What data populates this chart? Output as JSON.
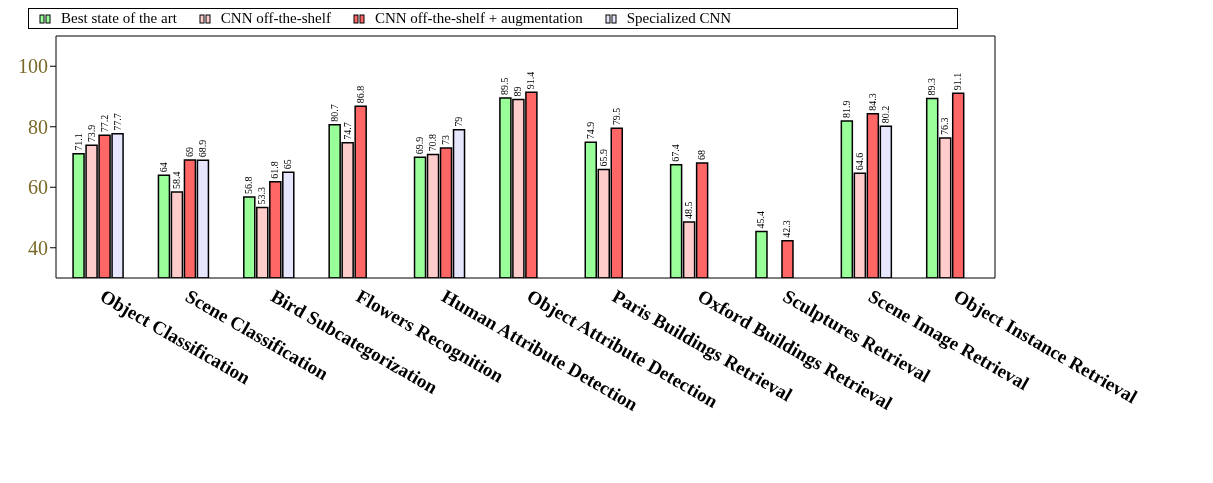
{
  "chart_data": {
    "type": "bar",
    "categories": [
      "Object Classification",
      "Scene Classification",
      "Bird Subcategorization",
      "Flowers Recognition",
      "Human Attribute Detection",
      "Object Attribute Detection",
      "Paris Buildings Retrieval",
      "Oxford Buildings Retrieval",
      "Sculptures Retrieval",
      "Scene Image Retrieval",
      "Object Instance Retrieval"
    ],
    "series": [
      {
        "name": "Best state of the art",
        "color": "#99ff99",
        "values": [
          71.1,
          64,
          56.8,
          80.7,
          69.9,
          89.5,
          74.9,
          67.4,
          45.4,
          81.9,
          89.3
        ]
      },
      {
        "name": "CNN off-the-shelf",
        "color": "#ffcccc",
        "values": [
          73.9,
          58.4,
          53.3,
          74.7,
          70.8,
          89,
          65.9,
          48.5,
          null,
          64.6,
          76.3
        ]
      },
      {
        "name": "CNN off-the-shelf + augmentation",
        "color": "#ff6666",
        "values": [
          77.2,
          69,
          61.8,
          86.8,
          73,
          91.4,
          79.5,
          68,
          42.3,
          84.3,
          91.1
        ]
      },
      {
        "name": "Specialized CNN",
        "color": "#e6e6ff",
        "values": [
          77.7,
          68.9,
          65,
          null,
          79,
          null,
          null,
          null,
          null,
          80.2,
          null
        ]
      }
    ],
    "ylim": [
      30,
      110
    ],
    "yticks": [
      40,
      60,
      80,
      100
    ],
    "legend": "top",
    "data_labels": true
  }
}
